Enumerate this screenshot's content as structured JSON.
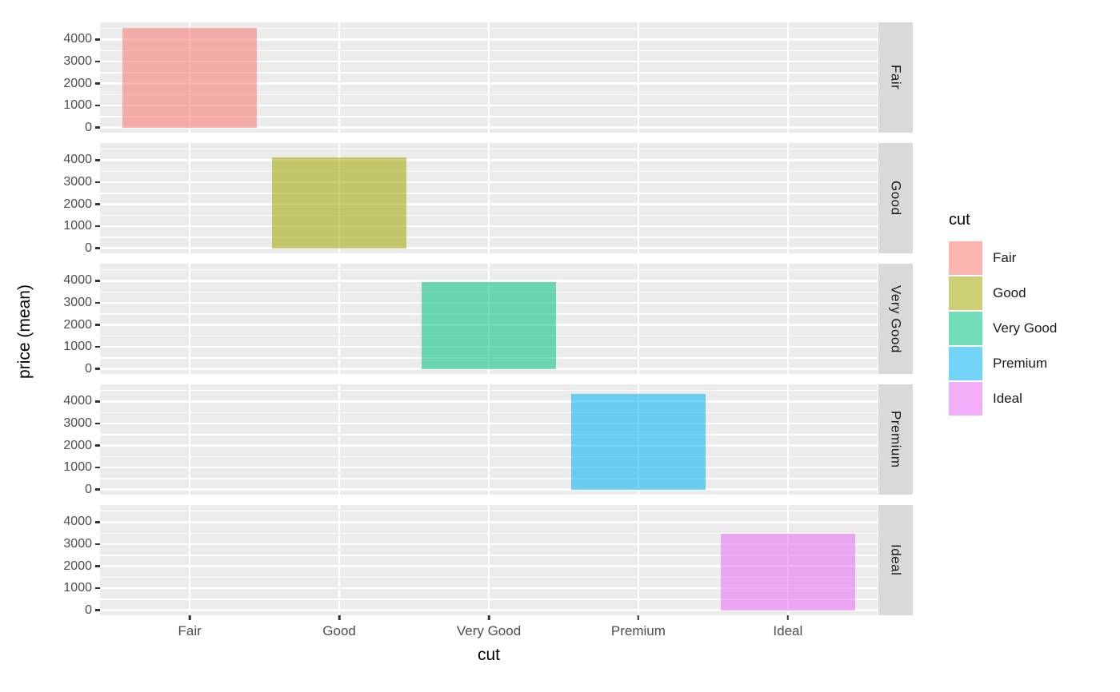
{
  "chart_data": {
    "type": "bar",
    "title": "",
    "xlabel": "cut",
    "ylabel": "price (mean)",
    "categories": [
      "Fair",
      "Good",
      "Very Good",
      "Premium",
      "Ideal"
    ],
    "values": [
      4520,
      4140,
      3960,
      4360,
      3460
    ],
    "colors": [
      "#F8766D",
      "#A3A500",
      "#00BF7D",
      "#00B0F6",
      "#E76BF3"
    ],
    "fill_alpha": 0.55,
    "facets": [
      "Fair",
      "Good",
      "Very Good",
      "Premium",
      "Ideal"
    ],
    "y_major_ticks": [
      0,
      1000,
      2000,
      3000,
      4000
    ],
    "y_minor_ticks": [
      500,
      1500,
      2500,
      3500,
      4500
    ],
    "ylim_panel": [
      -230,
      4780
    ],
    "grid": true,
    "legend_position": "right",
    "legend": {
      "title": "cut",
      "entries": [
        "Fair",
        "Good",
        "Very Good",
        "Premium",
        "Ideal"
      ]
    },
    "style": {
      "panel_bg": "#EBEBEB",
      "strip_bg": "#D9D9D9",
      "gridline_color": "#FFFFFF",
      "axis_text_color": "#4D4D4D",
      "strip_text_color": "#1A1A1A",
      "tick_mark_color": "#333333",
      "legend_text_color": "#1A1A1A"
    }
  }
}
